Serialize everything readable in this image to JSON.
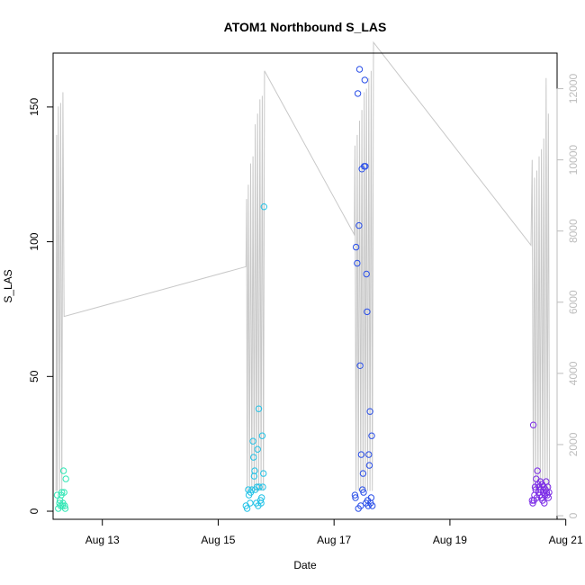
{
  "chart_data": {
    "type": "scatter",
    "title": "ATOM1 Northbound S_LAS",
    "xlabel": "Date",
    "ylabel": "S_LAS",
    "x_unit": "day of August",
    "xlim": [
      12.15,
      20.85
    ],
    "ylim": [
      -3,
      170
    ],
    "x_ticks": [
      {
        "value": 13,
        "label": "Aug 13"
      },
      {
        "value": 15,
        "label": "Aug 15"
      },
      {
        "value": 17,
        "label": "Aug 17"
      },
      {
        "value": 19,
        "label": "Aug 19"
      },
      {
        "value": 21,
        "label": "Aug 21"
      }
    ],
    "y_ticks": [
      0,
      50,
      100,
      150
    ],
    "y2_ticks": [
      0,
      2000,
      4000,
      6000,
      8000,
      10000,
      12000
    ],
    "y2lim": [
      -100,
      13000
    ],
    "colors": {
      "points_aug12": "#2fe6b4",
      "points_aug15": "#22c2e6",
      "points_aug17": "#2a4fe8",
      "points_aug20": "#7a2ae6",
      "secondary_line": "#c8c8c8",
      "secondary_axis": "#bdbdbd"
    },
    "series": [
      {
        "color": "#2fe6b4",
        "points": [
          [
            12.22,
            6
          ],
          [
            12.24,
            1
          ],
          [
            12.26,
            3
          ],
          [
            12.27,
            4
          ],
          [
            12.28,
            2
          ],
          [
            12.29,
            6
          ],
          [
            12.3,
            7
          ],
          [
            12.31,
            2
          ],
          [
            12.32,
            3
          ],
          [
            12.33,
            15
          ],
          [
            12.34,
            7
          ],
          [
            12.35,
            2
          ],
          [
            12.36,
            1
          ],
          [
            12.37,
            12
          ]
        ]
      },
      {
        "color": "#22c2e6",
        "points": [
          [
            15.48,
            2
          ],
          [
            15.5,
            1
          ],
          [
            15.52,
            8
          ],
          [
            15.53,
            6
          ],
          [
            15.55,
            3
          ],
          [
            15.56,
            7
          ],
          [
            15.58,
            8
          ],
          [
            15.6,
            26
          ],
          [
            15.61,
            20
          ],
          [
            15.62,
            13
          ],
          [
            15.63,
            15
          ],
          [
            15.64,
            8
          ],
          [
            15.66,
            3
          ],
          [
            15.67,
            9
          ],
          [
            15.68,
            23
          ],
          [
            15.69,
            2
          ],
          [
            15.7,
            38
          ],
          [
            15.71,
            9
          ],
          [
            15.73,
            4
          ],
          [
            15.74,
            3
          ],
          [
            15.75,
            5
          ],
          [
            15.76,
            28
          ],
          [
            15.77,
            9
          ],
          [
            15.78,
            14
          ],
          [
            15.79,
            113
          ]
        ]
      },
      {
        "color": "#2a4fe8",
        "points": [
          [
            17.36,
            6
          ],
          [
            17.37,
            5
          ],
          [
            17.38,
            98
          ],
          [
            17.4,
            92
          ],
          [
            17.41,
            155
          ],
          [
            17.42,
            1
          ],
          [
            17.43,
            106
          ],
          [
            17.44,
            164
          ],
          [
            17.45,
            54
          ],
          [
            17.46,
            2
          ],
          [
            17.47,
            21
          ],
          [
            17.48,
            127
          ],
          [
            17.49,
            8
          ],
          [
            17.5,
            14
          ],
          [
            17.51,
            7
          ],
          [
            17.52,
            128
          ],
          [
            17.53,
            160
          ],
          [
            17.54,
            128
          ],
          [
            17.55,
            3
          ],
          [
            17.56,
            88
          ],
          [
            17.57,
            74
          ],
          [
            17.58,
            4
          ],
          [
            17.59,
            2
          ],
          [
            17.6,
            21
          ],
          [
            17.61,
            17
          ],
          [
            17.62,
            37
          ],
          [
            17.63,
            3
          ],
          [
            17.64,
            5
          ],
          [
            17.65,
            28
          ],
          [
            17.66,
            2
          ]
        ]
      },
      {
        "color": "#7a2ae6",
        "points": [
          [
            20.42,
            4
          ],
          [
            20.43,
            3
          ],
          [
            20.44,
            32
          ],
          [
            20.45,
            4
          ],
          [
            20.46,
            6
          ],
          [
            20.47,
            9
          ],
          [
            20.48,
            8
          ],
          [
            20.49,
            12
          ],
          [
            20.5,
            5
          ],
          [
            20.51,
            15
          ],
          [
            20.52,
            10
          ],
          [
            20.53,
            7
          ],
          [
            20.54,
            9
          ],
          [
            20.55,
            6
          ],
          [
            20.56,
            11
          ],
          [
            20.57,
            8
          ],
          [
            20.58,
            5
          ],
          [
            20.59,
            10
          ],
          [
            20.6,
            4
          ],
          [
            20.61,
            7
          ],
          [
            20.62,
            9
          ],
          [
            20.63,
            3
          ],
          [
            20.64,
            6
          ],
          [
            20.65,
            8
          ],
          [
            20.66,
            11
          ],
          [
            20.67,
            7
          ],
          [
            20.68,
            6
          ],
          [
            20.69,
            9
          ],
          [
            20.7,
            5
          ],
          [
            20.71,
            7
          ]
        ]
      }
    ],
    "secondary_series": {
      "axis": "right",
      "color": "#c8c8c8",
      "points": [
        [
          12.2,
          700
        ],
        [
          12.21,
          10700
        ],
        [
          12.22,
          700
        ],
        [
          12.24,
          11500
        ],
        [
          12.26,
          700
        ],
        [
          12.28,
          11600
        ],
        [
          12.3,
          700
        ],
        [
          12.32,
          11900
        ],
        [
          12.34,
          5600
        ],
        [
          15.48,
          7000
        ],
        [
          15.49,
          8900
        ],
        [
          15.5,
          700
        ],
        [
          15.52,
          9300
        ],
        [
          15.54,
          700
        ],
        [
          15.56,
          9900
        ],
        [
          15.58,
          700
        ],
        [
          15.6,
          10100
        ],
        [
          15.62,
          700
        ],
        [
          15.64,
          11000
        ],
        [
          15.66,
          700
        ],
        [
          15.68,
          11300
        ],
        [
          15.7,
          700
        ],
        [
          15.72,
          11700
        ],
        [
          15.74,
          700
        ],
        [
          15.76,
          11800
        ],
        [
          15.78,
          700
        ],
        [
          15.8,
          12500
        ],
        [
          17.35,
          7900
        ],
        [
          17.36,
          10400
        ],
        [
          17.38,
          700
        ],
        [
          17.4,
          10700
        ],
        [
          17.42,
          700
        ],
        [
          17.44,
          11100
        ],
        [
          17.46,
          700
        ],
        [
          17.48,
          11400
        ],
        [
          17.5,
          700
        ],
        [
          17.52,
          11900
        ],
        [
          17.54,
          700
        ],
        [
          17.56,
          12000
        ],
        [
          17.58,
          700
        ],
        [
          17.6,
          12300
        ],
        [
          17.62,
          700
        ],
        [
          17.64,
          12500
        ],
        [
          17.66,
          700
        ],
        [
          17.68,
          13300
        ],
        [
          20.4,
          7600
        ],
        [
          20.42,
          10000
        ],
        [
          20.44,
          700
        ],
        [
          20.46,
          9500
        ],
        [
          20.48,
          700
        ],
        [
          20.5,
          9700
        ],
        [
          20.52,
          700
        ],
        [
          20.54,
          10100
        ],
        [
          20.56,
          700
        ],
        [
          20.58,
          10300
        ],
        [
          20.6,
          700
        ],
        [
          20.62,
          10600
        ],
        [
          20.64,
          700
        ],
        [
          20.66,
          12300
        ],
        [
          20.68,
          700
        ],
        [
          20.7,
          11300
        ],
        [
          20.72,
          700
        ]
      ]
    }
  }
}
